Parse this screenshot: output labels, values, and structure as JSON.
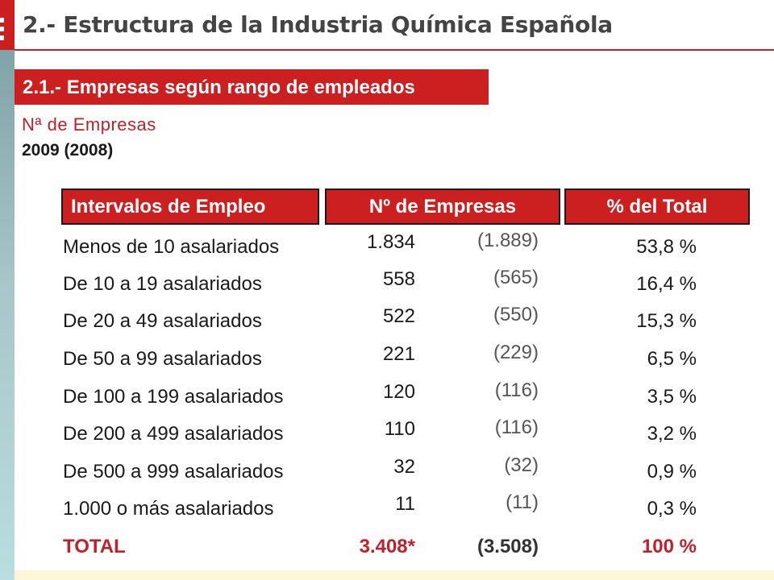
{
  "header": {
    "title": "2.- Estructura de la Industria Química Española"
  },
  "section": {
    "title": "2.1.- Empresas según rango de empleados",
    "subtitle": "Nª de Empresas",
    "year": "2009 (2008)"
  },
  "table": {
    "columns": [
      "Intervalos de Empleo",
      "Nº de Empresas",
      "% del Total"
    ],
    "rows": [
      {
        "label": "Menos de 10 asalariados",
        "count": "1.834",
        "prev": "(1.889)",
        "pct": "53,8 %"
      },
      {
        "label": "De 10 a 19 asalariados",
        "count": "558",
        "prev": "(565)",
        "pct": "16,4 %"
      },
      {
        "label": "De 20 a 49 asalariados",
        "count": "522",
        "prev": "(550)",
        "pct": "15,3 %"
      },
      {
        "label": "De 50 a 99 asalariados",
        "count": "221",
        "prev": "(229)",
        "pct": "6,5 %"
      },
      {
        "label": "De 100 a 199 asalariados",
        "count": "120",
        "prev": "(116)",
        "pct": "3,5 %"
      },
      {
        "label": "De 200 a 499 asalariados",
        "count": "110",
        "prev": "(116)",
        "pct": "3,2 %"
      },
      {
        "label": "De 500 a 999 asalariados",
        "count": "32",
        "prev": "(32)",
        "pct": "0,9 %"
      },
      {
        "label": "1.000 o más asalariados",
        "count": "11",
        "prev": "(11)",
        "pct": "0,3 %"
      }
    ],
    "total": {
      "label": "TOTAL",
      "count": "3.408*",
      "prev": "(3.508)",
      "pct": "100 %"
    }
  },
  "colors": {
    "accent": "#cc1f1f",
    "text_red": "#c0202a",
    "strip": "#a9c6c9"
  }
}
